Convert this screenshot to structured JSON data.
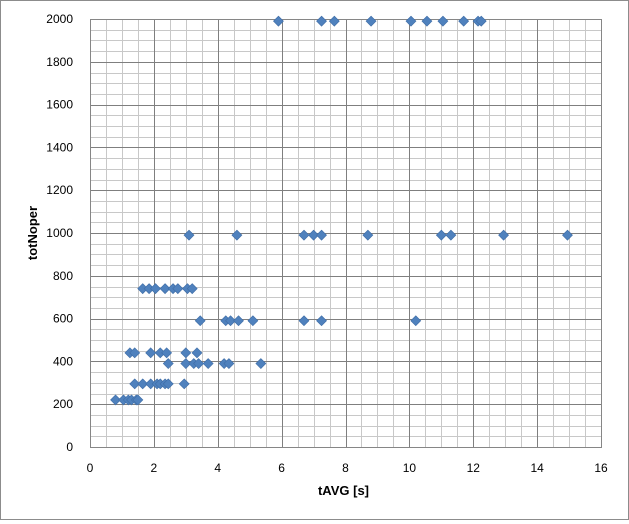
{
  "chart_data": {
    "type": "scatter",
    "xlabel": "tAVG [s]",
    "ylabel": "totNoper",
    "xlim": [
      0,
      16
    ],
    "ylim": [
      0,
      2000
    ],
    "x_major_step": 2,
    "x_minor_step": 0.5,
    "y_major_step": 200,
    "y_minor_step": 50,
    "x_ticks": [
      "0",
      "2",
      "4",
      "6",
      "8",
      "10",
      "12",
      "14",
      "16"
    ],
    "y_ticks": [
      "0",
      "200",
      "400",
      "600",
      "800",
      "1000",
      "1200",
      "1400",
      "1600",
      "1800",
      "2000"
    ],
    "grid": true,
    "legend": "none",
    "marker": "diamond",
    "marker_color": "#4f81bd",
    "series": [
      {
        "points": [
          [
            0.8,
            220
          ],
          [
            1.05,
            220
          ],
          [
            1.2,
            220
          ],
          [
            1.3,
            220
          ],
          [
            1.45,
            220
          ],
          [
            1.5,
            220
          ],
          [
            1.4,
            295
          ],
          [
            1.65,
            295
          ],
          [
            1.9,
            295
          ],
          [
            2.1,
            295
          ],
          [
            2.2,
            295
          ],
          [
            2.35,
            295
          ],
          [
            2.45,
            295
          ],
          [
            2.95,
            295
          ],
          [
            2.45,
            390
          ],
          [
            3.0,
            390
          ],
          [
            3.25,
            390
          ],
          [
            3.4,
            390
          ],
          [
            3.7,
            390
          ],
          [
            4.2,
            390
          ],
          [
            4.35,
            390
          ],
          [
            5.35,
            390
          ],
          [
            1.25,
            440
          ],
          [
            1.4,
            440
          ],
          [
            1.9,
            440
          ],
          [
            2.2,
            440
          ],
          [
            2.4,
            440
          ],
          [
            3.0,
            440
          ],
          [
            3.35,
            440
          ],
          [
            3.45,
            590
          ],
          [
            4.25,
            590
          ],
          [
            4.4,
            590
          ],
          [
            4.65,
            590
          ],
          [
            5.1,
            590
          ],
          [
            6.7,
            590
          ],
          [
            7.25,
            590
          ],
          [
            10.2,
            590
          ],
          [
            1.65,
            740
          ],
          [
            1.85,
            740
          ],
          [
            2.05,
            740
          ],
          [
            2.35,
            740
          ],
          [
            2.6,
            740
          ],
          [
            2.75,
            740
          ],
          [
            3.05,
            740
          ],
          [
            3.2,
            740
          ],
          [
            3.1,
            990
          ],
          [
            4.6,
            990
          ],
          [
            6.7,
            990
          ],
          [
            7.0,
            990
          ],
          [
            7.25,
            990
          ],
          [
            8.7,
            990
          ],
          [
            11.0,
            990
          ],
          [
            11.3,
            990
          ],
          [
            12.95,
            990
          ],
          [
            14.95,
            990
          ],
          [
            5.9,
            1990
          ],
          [
            7.25,
            1990
          ],
          [
            7.65,
            1990
          ],
          [
            8.8,
            1990
          ],
          [
            10.05,
            1990
          ],
          [
            10.55,
            1990
          ],
          [
            11.05,
            1990
          ],
          [
            11.7,
            1990
          ],
          [
            12.15,
            1990
          ],
          [
            12.25,
            1990
          ]
        ]
      }
    ]
  }
}
